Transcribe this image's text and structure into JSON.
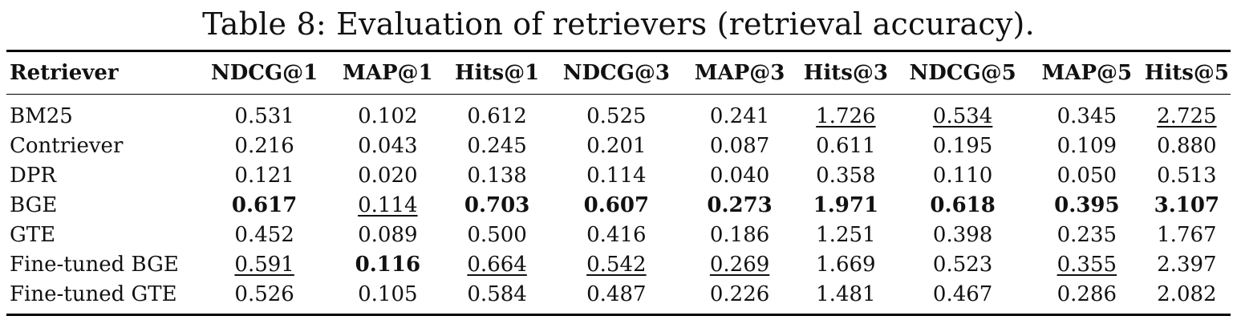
{
  "caption": "Table 8: Evaluation of retrievers (retrieval accuracy).",
  "columns": [
    "Retriever",
    "NDCG@1",
    "MAP@1",
    "Hits@1",
    "NDCG@3",
    "MAP@3",
    "Hits@3",
    "NDCG@5",
    "MAP@5",
    "Hits@5"
  ],
  "rows": [
    {
      "name": "BM25",
      "cells": [
        {
          "v": "0.531",
          "s": ""
        },
        {
          "v": "0.102",
          "s": ""
        },
        {
          "v": "0.612",
          "s": ""
        },
        {
          "v": "0.525",
          "s": ""
        },
        {
          "v": "0.241",
          "s": ""
        },
        {
          "v": "1.726",
          "s": "u"
        },
        {
          "v": "0.534",
          "s": "u"
        },
        {
          "v": "0.345",
          "s": ""
        },
        {
          "v": "2.725",
          "s": "u"
        }
      ]
    },
    {
      "name": "Contriever",
      "cells": [
        {
          "v": "0.216",
          "s": ""
        },
        {
          "v": "0.043",
          "s": ""
        },
        {
          "v": "0.245",
          "s": ""
        },
        {
          "v": "0.201",
          "s": ""
        },
        {
          "v": "0.087",
          "s": ""
        },
        {
          "v": "0.611",
          "s": ""
        },
        {
          "v": "0.195",
          "s": ""
        },
        {
          "v": "0.109",
          "s": ""
        },
        {
          "v": "0.880",
          "s": ""
        }
      ]
    },
    {
      "name": "DPR",
      "cells": [
        {
          "v": "0.121",
          "s": ""
        },
        {
          "v": "0.020",
          "s": ""
        },
        {
          "v": "0.138",
          "s": ""
        },
        {
          "v": "0.114",
          "s": ""
        },
        {
          "v": "0.040",
          "s": ""
        },
        {
          "v": "0.358",
          "s": ""
        },
        {
          "v": "0.110",
          "s": ""
        },
        {
          "v": "0.050",
          "s": ""
        },
        {
          "v": "0.513",
          "s": ""
        }
      ]
    },
    {
      "name": "BGE",
      "cells": [
        {
          "v": "0.617",
          "s": "b"
        },
        {
          "v": "0.114",
          "s": "u"
        },
        {
          "v": "0.703",
          "s": "b"
        },
        {
          "v": "0.607",
          "s": "b"
        },
        {
          "v": "0.273",
          "s": "b"
        },
        {
          "v": "1.971",
          "s": "b"
        },
        {
          "v": "0.618",
          "s": "b"
        },
        {
          "v": "0.395",
          "s": "b"
        },
        {
          "v": "3.107",
          "s": "b"
        }
      ]
    },
    {
      "name": "GTE",
      "cells": [
        {
          "v": "0.452",
          "s": ""
        },
        {
          "v": "0.089",
          "s": ""
        },
        {
          "v": "0.500",
          "s": ""
        },
        {
          "v": "0.416",
          "s": ""
        },
        {
          "v": "0.186",
          "s": ""
        },
        {
          "v": "1.251",
          "s": ""
        },
        {
          "v": "0.398",
          "s": ""
        },
        {
          "v": "0.235",
          "s": ""
        },
        {
          "v": "1.767",
          "s": ""
        }
      ]
    },
    {
      "name": "Fine-tuned BGE",
      "cells": [
        {
          "v": "0.591",
          "s": "u"
        },
        {
          "v": "0.116",
          "s": "b"
        },
        {
          "v": "0.664",
          "s": "u"
        },
        {
          "v": "0.542",
          "s": "u"
        },
        {
          "v": "0.269",
          "s": "u"
        },
        {
          "v": "1.669",
          "s": ""
        },
        {
          "v": "0.523",
          "s": ""
        },
        {
          "v": "0.355",
          "s": "u"
        },
        {
          "v": "2.397",
          "s": ""
        }
      ]
    },
    {
      "name": "Fine-tuned GTE",
      "cells": [
        {
          "v": "0.526",
          "s": ""
        },
        {
          "v": "0.105",
          "s": ""
        },
        {
          "v": "0.584",
          "s": ""
        },
        {
          "v": "0.487",
          "s": ""
        },
        {
          "v": "0.226",
          "s": ""
        },
        {
          "v": "1.481",
          "s": ""
        },
        {
          "v": "0.467",
          "s": ""
        },
        {
          "v": "0.286",
          "s": ""
        },
        {
          "v": "2.082",
          "s": ""
        }
      ]
    }
  ]
}
